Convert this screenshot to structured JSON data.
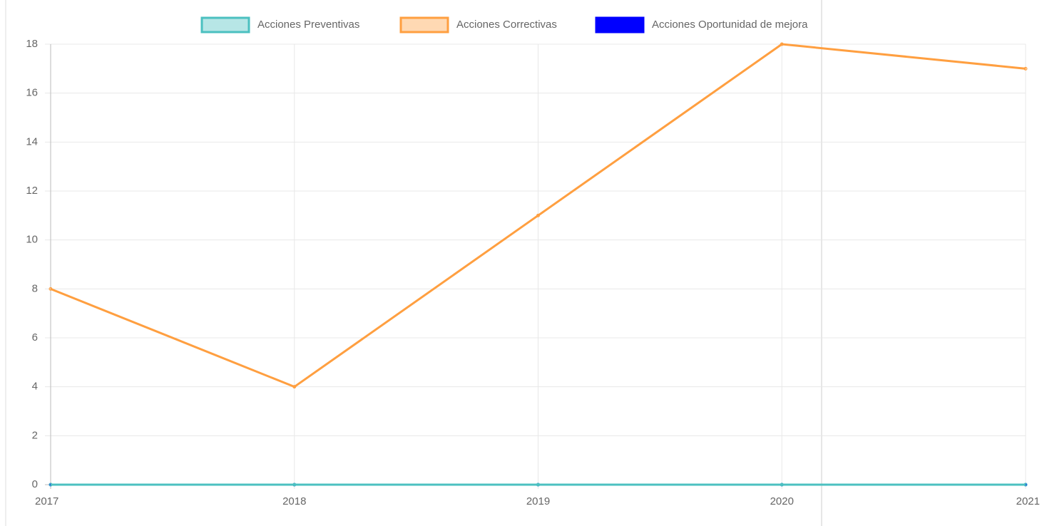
{
  "chart_data": {
    "type": "line",
    "categories": [
      "2017",
      "2018",
      "2019",
      "2020",
      "2021"
    ],
    "series": [
      {
        "name": "Acciones Preventivas",
        "color": "#4bc0c0",
        "fill": "rgba(75,192,192,0.4)",
        "values": [
          0,
          0,
          0,
          0,
          0
        ]
      },
      {
        "name": "Acciones Correctivas",
        "color": "#ff9f40",
        "fill": "rgba(255,159,64,0.4)",
        "values": [
          8,
          4,
          11,
          18,
          17
        ]
      },
      {
        "name": "Acciones Oportunidad de mejora",
        "color": "#0000ff",
        "fill": "#0000ff",
        "values": [
          0,
          0,
          0,
          0,
          0
        ]
      }
    ],
    "ylim": [
      0,
      18
    ],
    "yticks": [
      0,
      2,
      4,
      6,
      8,
      10,
      12,
      14,
      16,
      18
    ],
    "grid": true
  }
}
